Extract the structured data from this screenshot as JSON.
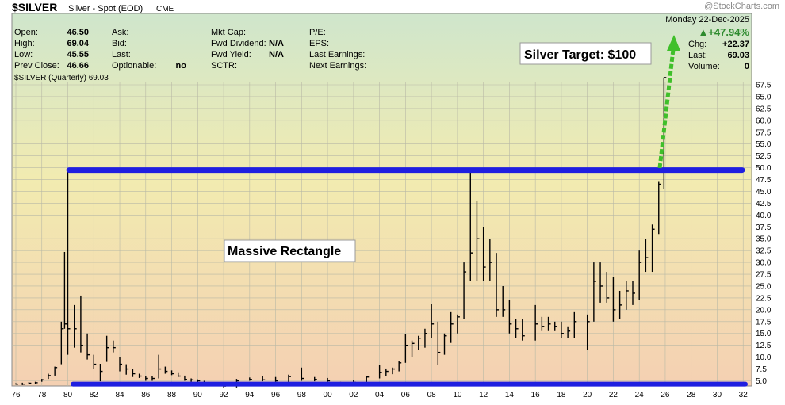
{
  "header": {
    "symbol": "$SILVER",
    "name": "Silver - Spot (EOD)",
    "exchange": "CME",
    "watermark": "@StockCharts.com",
    "date_line": "Monday  22-Dec-2025",
    "change_pct": "▲+47.94%",
    "rows": [
      [
        {
          "label": "Open:",
          "value": "46.50"
        },
        {
          "label": "Ask:",
          "value": ""
        },
        {
          "label": "Mkt Cap:",
          "value": ""
        },
        {
          "label": "P/E:",
          "value": ""
        }
      ],
      [
        {
          "label": "High:",
          "value": "69.04"
        },
        {
          "label": "Bid:",
          "value": ""
        },
        {
          "label": "Fwd Dividend:",
          "value": "N/A"
        },
        {
          "label": "EPS:",
          "value": ""
        }
      ],
      [
        {
          "label": "Low:",
          "value": "45.55"
        },
        {
          "label": "Last:",
          "value": ""
        },
        {
          "label": "Fwd Yield:",
          "value": "N/A"
        },
        {
          "label": "Last Earnings:",
          "value": ""
        }
      ],
      [
        {
          "label": "Prev Close:",
          "value": "46.66"
        },
        {
          "label": "Optionable:",
          "value": "no"
        },
        {
          "label": "SCTR:",
          "value": ""
        },
        {
          "label": "Next Earnings:",
          "value": ""
        }
      ]
    ],
    "right_rows": [
      {
        "label": "Chg:",
        "value": "+22.37"
      },
      {
        "label": "Last:",
        "value": "69.03"
      },
      {
        "label": "Volume:",
        "value": "0"
      }
    ]
  },
  "colors": {
    "bg_top": "#cfe6cc",
    "bg_mid": "#f2ebb0",
    "bg_bottom": "#f4d0b2",
    "price_bars": "#000000",
    "rectangle": "#1f1fe0",
    "arrow": "#3fbf2a",
    "up": "#2e8b2e"
  },
  "chart_data": {
    "type": "ohlc",
    "title": "$SILVER (Quarterly) 69.03",
    "x_tick_labels": [
      "76",
      "78",
      "80",
      "82",
      "84",
      "86",
      "88",
      "90",
      "92",
      "94",
      "96",
      "98",
      "00",
      "02",
      "04",
      "06",
      "08",
      "10",
      "12",
      "14",
      "16",
      "18",
      "20",
      "22",
      "24",
      "26",
      "28",
      "30",
      "32"
    ],
    "x_range": [
      1975.8,
      2034
    ],
    "y_tick_labels": [
      "5.0",
      "7.5",
      "10.0",
      "12.5",
      "15.0",
      "17.5",
      "20.0",
      "22.5",
      "25.0",
      "27.5",
      "30.0",
      "32.5",
      "35.0",
      "37.5",
      "40.0",
      "42.5",
      "45.0",
      "47.5",
      "50.0",
      "52.5",
      "55.0",
      "57.5",
      "60.0",
      "62.5",
      "65.0",
      "67.5"
    ],
    "ylim": [
      2.5,
      72
    ],
    "resistance": 49.5,
    "support": 4.3,
    "target": 100,
    "annotations": [
      "Massive Rectangle",
      "Silver Target: $100"
    ],
    "series": [
      {
        "points": [
          [
            1976,
            4.5,
            4.2,
            4.3
          ],
          [
            1976.5,
            4.6,
            4.1,
            4.3
          ],
          [
            1977,
            4.7,
            4.3,
            4.5
          ],
          [
            1977.5,
            4.8,
            4.4,
            4.6
          ],
          [
            1978,
            5.4,
            4.8,
            5.2
          ],
          [
            1978.5,
            6.5,
            5.4,
            6.1
          ],
          [
            1979,
            8.0,
            6.1,
            7.8
          ],
          [
            1979.5,
            17.5,
            8.5,
            16.0
          ],
          [
            1979.75,
            32.2,
            16.0,
            17.0
          ],
          [
            1980,
            49.5,
            10.5,
            16.0
          ],
          [
            1980.5,
            21.0,
            12.0,
            16.0
          ],
          [
            1981,
            23.0,
            11.0,
            12.5
          ],
          [
            1981.5,
            15.0,
            9.5,
            10.5
          ],
          [
            1982,
            10.5,
            7.5,
            8.5
          ],
          [
            1982.5,
            8.6,
            4.9,
            7.0
          ],
          [
            1983,
            14.5,
            9.0,
            12.0
          ],
          [
            1983.5,
            13.5,
            11.0,
            12.0
          ],
          [
            1984,
            10.0,
            7.0,
            8.5
          ],
          [
            1984.5,
            8.5,
            6.3,
            7.5
          ],
          [
            1985,
            7.5,
            5.8,
            6.5
          ],
          [
            1985.5,
            6.5,
            5.6,
            6.0
          ],
          [
            1986,
            6.0,
            5.0,
            5.5
          ],
          [
            1986.5,
            6.0,
            5.0,
            5.5
          ],
          [
            1987,
            10.5,
            5.5,
            7.5
          ],
          [
            1987.5,
            8.0,
            6.5,
            7.0
          ],
          [
            1988,
            7.2,
            6.2,
            6.5
          ],
          [
            1988.5,
            6.8,
            5.8,
            6.0
          ],
          [
            1989,
            6.1,
            5.0,
            5.3
          ],
          [
            1989.5,
            5.5,
            4.8,
            5.2
          ],
          [
            1990,
            5.3,
            4.6,
            5.0
          ],
          [
            1990.5,
            5.0,
            4.0,
            4.2
          ],
          [
            1992,
            4.2,
            3.6,
            3.9
          ],
          [
            1993,
            5.4,
            3.6,
            5.0
          ],
          [
            1994,
            5.7,
            5.0,
            5.3
          ],
          [
            1995,
            6.0,
            4.9,
            5.2
          ],
          [
            1996,
            5.8,
            4.8,
            5.0
          ],
          [
            1997,
            6.3,
            4.5,
            5.9
          ],
          [
            1998,
            7.8,
            5.0,
            5.5
          ],
          [
            1999,
            5.8,
            4.9,
            5.3
          ],
          [
            2000,
            5.6,
            4.8,
            5.0
          ],
          [
            2001,
            4.8,
            4.0,
            4.5
          ],
          [
            2002,
            5.1,
            4.3,
            4.7
          ],
          [
            2003,
            5.9,
            4.4,
            5.8
          ],
          [
            2004,
            8.3,
            5.5,
            6.8
          ],
          [
            2004.5,
            7.6,
            6.0,
            7.0
          ],
          [
            2005,
            7.8,
            6.4,
            7.5
          ],
          [
            2005.5,
            9.2,
            7.0,
            8.8
          ],
          [
            2006,
            14.9,
            8.8,
            12.5
          ],
          [
            2006.5,
            13.5,
            10.0,
            12.9
          ],
          [
            2007,
            14.5,
            11.5,
            14.0
          ],
          [
            2007.5,
            16.0,
            12.0,
            15.0
          ],
          [
            2008,
            21.3,
            14.0,
            17.0
          ],
          [
            2008.5,
            17.5,
            8.4,
            11.0
          ],
          [
            2009,
            15.0,
            10.5,
            14.5
          ],
          [
            2009.5,
            19.5,
            13.0,
            17.0
          ],
          [
            2010,
            19.0,
            15.0,
            18.5
          ],
          [
            2010.5,
            30.0,
            18.0,
            28.0
          ],
          [
            2011,
            49.5,
            26.0,
            32.0
          ],
          [
            2011.5,
            43.0,
            26.0,
            35.0
          ],
          [
            2012,
            37.5,
            26.0,
            29.0
          ],
          [
            2012.5,
            35.0,
            26.0,
            30.0
          ],
          [
            2013,
            32.0,
            18.5,
            20.0
          ],
          [
            2013.5,
            25.0,
            18.5,
            20.0
          ],
          [
            2014,
            22.0,
            15.0,
            17.0
          ],
          [
            2014.5,
            18.0,
            14.0,
            16.0
          ],
          [
            2015,
            18.0,
            13.5,
            14.5
          ],
          [
            2016,
            21.0,
            13.5,
            17.0
          ],
          [
            2016.5,
            18.5,
            15.5,
            16.5
          ],
          [
            2017,
            18.5,
            15.5,
            17.0
          ],
          [
            2017.5,
            17.5,
            15.5,
            16.5
          ],
          [
            2018,
            17.5,
            14.0,
            15.0
          ],
          [
            2018.5,
            16.5,
            14.0,
            15.5
          ],
          [
            2019,
            19.5,
            14.0,
            17.5
          ],
          [
            2020,
            19.0,
            11.6,
            17.5
          ],
          [
            2020.5,
            30.0,
            17.5,
            26.0
          ],
          [
            2021,
            30.0,
            21.5,
            25.0
          ],
          [
            2021.5,
            28.0,
            21.5,
            22.5
          ],
          [
            2022,
            27.0,
            17.5,
            20.0
          ],
          [
            2022.5,
            24.0,
            18.0,
            21.0
          ],
          [
            2023,
            26.0,
            20.0,
            24.0
          ],
          [
            2023.5,
            26.0,
            21.0,
            23.5
          ],
          [
            2024,
            32.5,
            22.0,
            30.0
          ],
          [
            2024.5,
            35.0,
            28.0,
            31.0
          ],
          [
            2025,
            38.0,
            28.0,
            37.0
          ],
          [
            2025.5,
            47.0,
            36.0,
            46.5
          ],
          [
            2025.9,
            69.04,
            45.55,
            69.03
          ]
        ]
      }
    ]
  }
}
